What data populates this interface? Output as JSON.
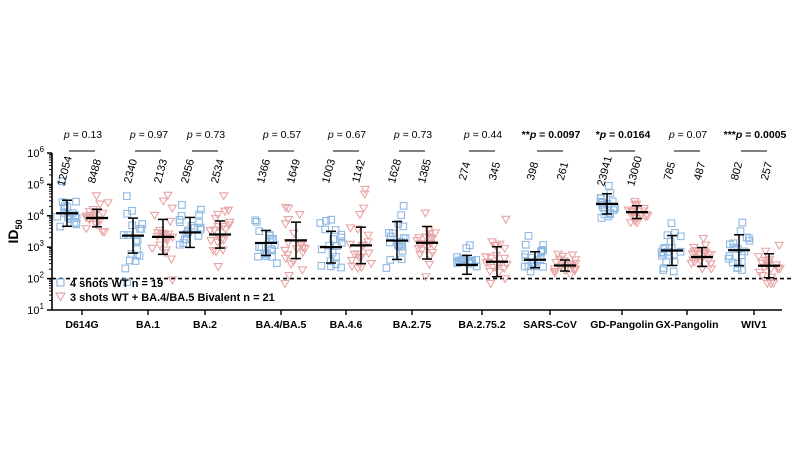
{
  "chart_data": {
    "type": "scatter",
    "subtype": "dot-plot-geometric-mean",
    "title": "",
    "xlabel": "",
    "ylabel": "ID",
    "ylabel_subscript": "50",
    "yscale": "log10",
    "ylim": [
      10,
      1000000
    ],
    "yticks": [
      {
        "value": 10,
        "base": "10",
        "exp": "1"
      },
      {
        "value": 100,
        "base": "10",
        "exp": "2"
      },
      {
        "value": 1000,
        "base": "10",
        "exp": "3"
      },
      {
        "value": 10000,
        "base": "10",
        "exp": "4"
      },
      {
        "value": 100000,
        "base": "10",
        "exp": "5"
      },
      {
        "value": 1000000,
        "base": "10",
        "exp": "6"
      }
    ],
    "detection_limit": 100,
    "categories": [
      "D614G",
      "BA.1",
      "BA.2",
      "BA.4/BA.5",
      "BA.4.6",
      "BA.2.75",
      "BA.2.75.2",
      "SARS-CoV",
      "GD-Pangolin",
      "GX-Pangolin",
      "WIV1"
    ],
    "series": [
      {
        "name": "4 shots WT n = 19",
        "marker": "square",
        "color": "#8fb9e3",
        "n": 19,
        "values": [
          12054,
          2340,
          2956,
          1366,
          1003,
          1628,
          274,
          398,
          23941,
          785,
          802
        ],
        "value_labels": [
          "12054",
          "2340",
          "2956",
          "1366",
          "1003",
          "1628",
          "274",
          "398",
          "23941",
          "785",
          "802"
        ],
        "sd_fold": [
          2.6,
          3.6,
          3.0,
          2.5,
          3.2,
          4.0,
          2.0,
          1.8,
          2.1,
          3.0,
          3.1
        ]
      },
      {
        "name": "3 shots WT + BA.4/BA.5 Bivalent n = 21",
        "marker": "triangle-down",
        "color": "#e8a5a5",
        "n": 21,
        "values": [
          8488,
          2133,
          2534,
          1649,
          1142,
          1385,
          345,
          261,
          13060,
          487,
          257
        ],
        "value_labels": [
          "8488",
          "2133",
          "2534",
          "1649",
          "1142",
          "1385",
          "345",
          "261",
          "13060",
          "487",
          "257"
        ],
        "sd_fold": [
          1.9,
          3.6,
          2.7,
          3.8,
          3.8,
          3.3,
          3.0,
          1.5,
          1.6,
          2.0,
          2.4
        ]
      }
    ],
    "p_values": [
      {
        "text": "p = 0.13",
        "prefix": "",
        "stat": "p",
        "rest": " = 0.13",
        "bold": false
      },
      {
        "text": "p = 0.97",
        "prefix": "",
        "stat": "p",
        "rest": " = 0.97",
        "bold": false
      },
      {
        "text": "p = 0.73",
        "prefix": "",
        "stat": "p",
        "rest": " = 0.73",
        "bold": false
      },
      {
        "text": "p = 0.57",
        "prefix": "",
        "stat": "p",
        "rest": " = 0.57",
        "bold": false
      },
      {
        "text": "p = 0.67",
        "prefix": "",
        "stat": "p",
        "rest": " = 0.67",
        "bold": false
      },
      {
        "text": "p = 0.73",
        "prefix": "",
        "stat": "p",
        "rest": " = 0.73",
        "bold": false
      },
      {
        "text": "p = 0.44",
        "prefix": "",
        "stat": "p",
        "rest": " = 0.44",
        "bold": false
      },
      {
        "text": "**p = 0.0097",
        "prefix": "**",
        "stat": "p",
        "rest": " = 0.0097",
        "bold": true
      },
      {
        "text": "*p = 0.0164",
        "prefix": "*",
        "stat": "p",
        "rest": " = 0.0164",
        "bold": true
      },
      {
        "text": "p = 0.07",
        "prefix": "",
        "stat": "p",
        "rest": " = 0.07",
        "bold": false
      },
      {
        "text": "***p = 0.0005",
        "prefix": "***",
        "stat": "p",
        "rest": " = 0.0005",
        "bold": true
      }
    ],
    "legend": {
      "placement": "bottom-left",
      "entries": [
        "4 shots WT n = 19",
        "3 shots WT + BA.4/BA.5 Bivalent n = 21"
      ]
    }
  }
}
